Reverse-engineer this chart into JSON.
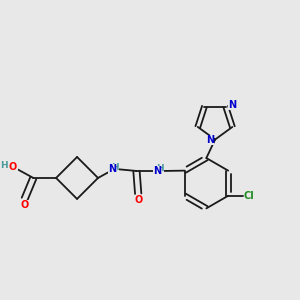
{
  "bg_color": "#e8e8e8",
  "bond_color": "#1a1a1a",
  "atom_colors": {
    "O": "#ff0000",
    "N": "#0000cc",
    "Cl": "#228B22",
    "H": "#4a9a9a",
    "C": "#1a1a1a"
  },
  "fig_size": [
    3.0,
    3.0
  ],
  "dpi": 100
}
